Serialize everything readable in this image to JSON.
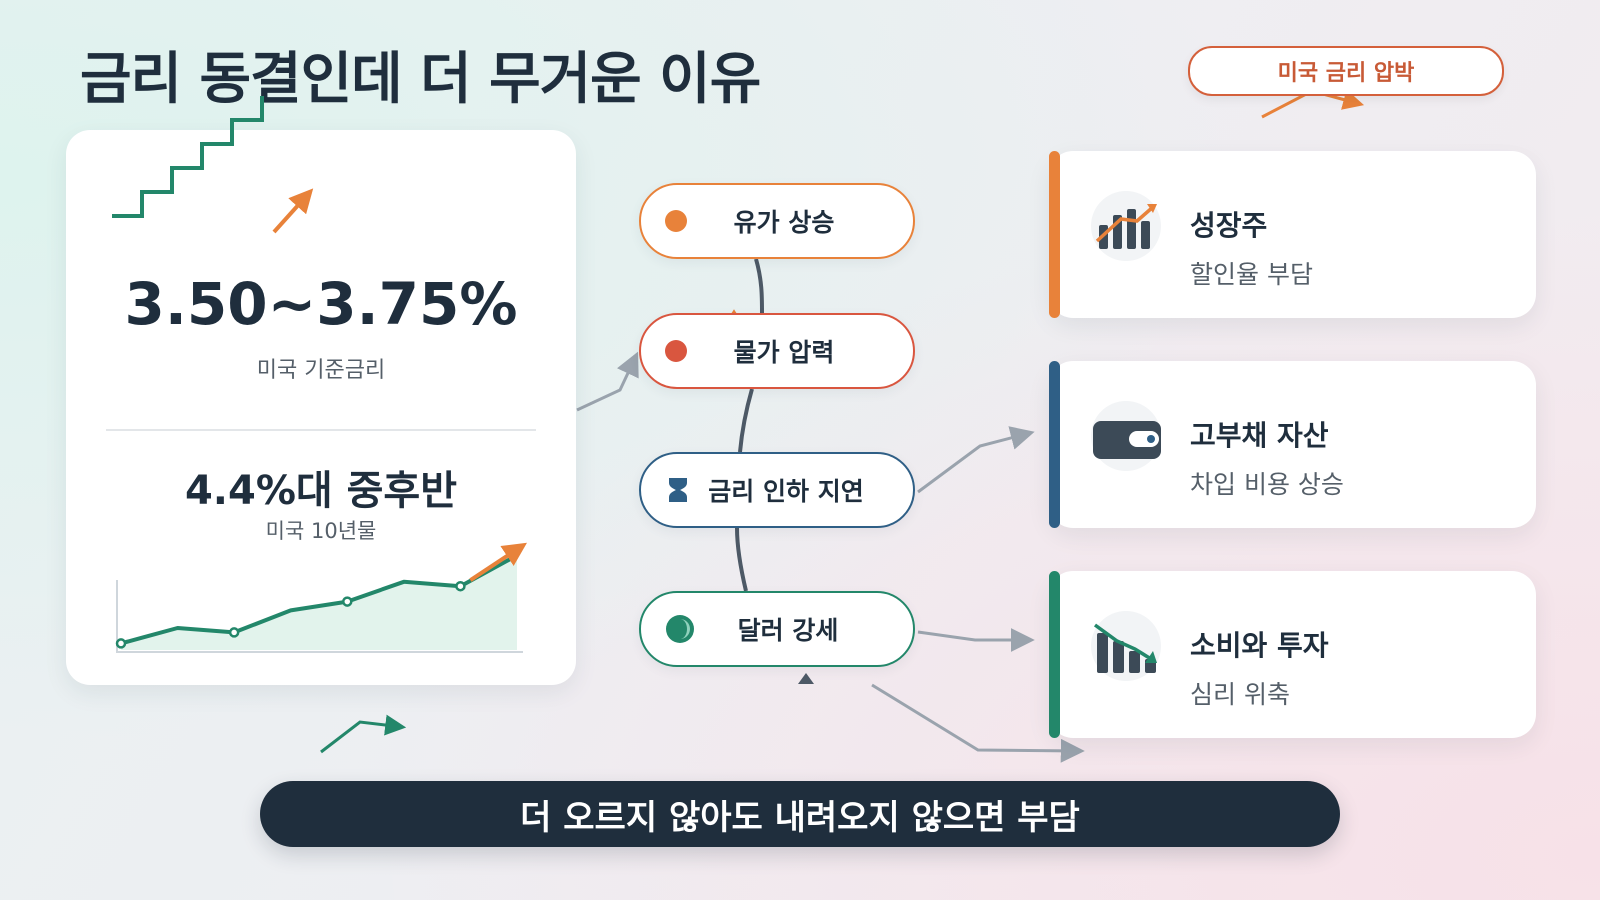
{
  "title": "금리 동결인데 더 무거운 이유",
  "top_badge": "미국 금리 압박",
  "left_panel": {
    "policy_rate": {
      "value": "3.50~3.75%",
      "label": "미국 기준금리"
    },
    "treasury": {
      "value": "4.4%대 중후반",
      "label": "미국 10년물"
    }
  },
  "chart_data": {
    "type": "line",
    "title": "",
    "xlabel": "",
    "ylabel": "",
    "x": [
      1,
      2,
      3,
      4,
      5,
      6,
      7,
      8
    ],
    "series": [
      {
        "name": "",
        "values": [
          0.3,
          1.0,
          0.8,
          1.8,
          2.2,
          3.1,
          2.9,
          4.3
        ]
      }
    ],
    "ylim": [
      0,
      5
    ],
    "grid": false,
    "trend": "rising"
  },
  "factors": [
    {
      "label": "유가 상승",
      "color": "#e8823a",
      "icon": "orange-dot-icon"
    },
    {
      "label": "물가 압력",
      "color": "#d9563f",
      "icon": "red-dot-icon"
    },
    {
      "label": "금리 인하 지연",
      "color": "#2f5f86",
      "icon": "hourglass-icon"
    },
    {
      "label": "달러 강세",
      "color": "#23876a",
      "icon": "dollar-coin-icon"
    }
  ],
  "impacts": [
    {
      "title": "성장주",
      "subtitle": "할인율 부담",
      "color": "#e8823a",
      "icon": "rising-bar-chart-icon"
    },
    {
      "title": "고부채 자산",
      "subtitle": "차입 비용 상승",
      "color": "#2f5f86",
      "icon": "wallet-icon"
    },
    {
      "title": "소비와 투자",
      "subtitle": "심리 위축",
      "color": "#23876a",
      "icon": "falling-bar-chart-icon"
    }
  ],
  "banner": "더 오르지 않아도 내려오지 않으면 부담",
  "colors": {
    "navy": "#1f2e3d",
    "orange": "#e8823a",
    "red": "#d9563f",
    "blue": "#2f5f86",
    "green": "#23876a",
    "badge": "#d4603b"
  }
}
